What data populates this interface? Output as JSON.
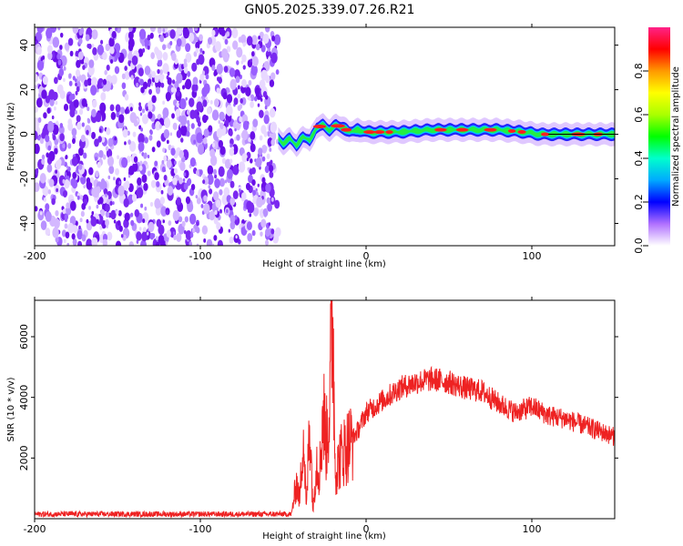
{
  "figure_title": "GN05.2025.339.07.26.R21",
  "chart_data": [
    {
      "type": "heatmap",
      "xlabel": "Height of straight line (km)",
      "ylabel": "Frequency (Hz)",
      "xlim": [
        -200,
        150
      ],
      "ylim": [
        -50,
        48
      ],
      "xticks": [
        -200,
        -100,
        0,
        100
      ],
      "xtick_labels": [
        "-200",
        "-100",
        "0",
        "100"
      ],
      "yticks": [
        -40,
        -20,
        0,
        20,
        40
      ],
      "ytick_labels": [
        "-40",
        "-20",
        "0",
        "20",
        "40"
      ],
      "noise_region_x": [
        -200,
        -53
      ],
      "signal_track": {
        "x": [
          -53,
          -50,
          -46,
          -42,
          -38,
          -34,
          -30,
          -26,
          -22,
          -18,
          -14,
          -10,
          -5,
          0,
          10,
          20,
          40,
          60,
          80,
          95,
          105,
          115,
          125,
          140,
          150
        ],
        "freq_hz": [
          -2,
          -4,
          -2,
          -5,
          -1,
          -3,
          3,
          4,
          2,
          4,
          3,
          1,
          2,
          1,
          1,
          1,
          2,
          2,
          2,
          1,
          0,
          0,
          0,
          0,
          0
        ]
      },
      "colorbar": {
        "label": "Normalized spectral amplitude",
        "range": [
          0,
          1
        ],
        "ticks": [
          0.0,
          0.2,
          0.4,
          0.6,
          0.8
        ],
        "tick_labels": [
          "0.0",
          "0.2",
          "0.4",
          "0.6",
          "0.8"
        ]
      }
    },
    {
      "type": "line",
      "xlabel": "Height of straight line (km)",
      "ylabel": "SNR (10 * v/v)",
      "xlim": [
        -200,
        150
      ],
      "ylim": [
        0,
        7200
      ],
      "xticks": [
        -200,
        -100,
        0,
        100
      ],
      "xtick_labels": [
        "-200",
        "-100",
        "0",
        "100"
      ],
      "yticks": [
        2000,
        4000,
        6000
      ],
      "ytick_labels": [
        "2000",
        "4000",
        "6000"
      ],
      "series": [
        {
          "name": "SNR",
          "color": "#ee2222",
          "x": [
            -200,
            -150,
            -100,
            -60,
            -45,
            -42,
            -40,
            -38,
            -36,
            -34,
            -32,
            -30,
            -28,
            -26,
            -24,
            -22,
            -20,
            -19,
            -18,
            -16,
            -14,
            -10,
            -5,
            0,
            5,
            10,
            20,
            30,
            40,
            50,
            60,
            70,
            80,
            90,
            100,
            110,
            120,
            130,
            140,
            150
          ],
          "y": [
            150,
            150,
            150,
            150,
            150,
            1200,
            600,
            3000,
            300,
            3500,
            200,
            2000,
            1500,
            3600,
            2500,
            3800,
            7200,
            2500,
            1500,
            2000,
            2200,
            2500,
            2900,
            3500,
            3700,
            3900,
            4300,
            4500,
            4600,
            4500,
            4300,
            4200,
            3800,
            3500,
            3700,
            3400,
            3300,
            3100,
            2900,
            2700
          ]
        }
      ]
    }
  ]
}
